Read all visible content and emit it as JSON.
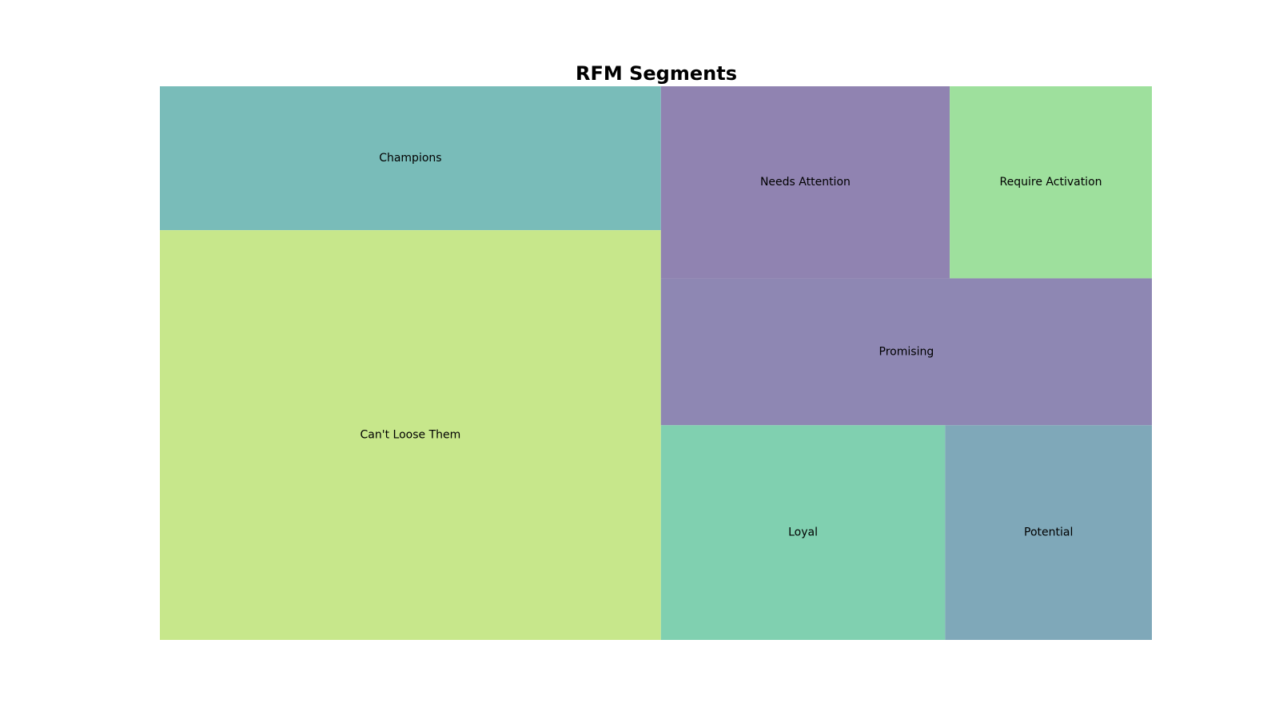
{
  "chart_data": {
    "type": "treemap",
    "title": "RFM Segments",
    "series": [
      {
        "name": "Can't Loose Them",
        "value": 37,
        "color": "#c7e78b"
      },
      {
        "name": "Champions",
        "value": 13,
        "color": "#79bcb9"
      },
      {
        "name": "Promising",
        "value": 13,
        "color": "#8e87b3"
      },
      {
        "name": "Needs Attention",
        "value": 10,
        "color": "#9083b1"
      },
      {
        "name": "Loyal",
        "value": 11,
        "color": "#80d0b0"
      },
      {
        "name": "Require Activation",
        "value": 7,
        "color": "#9ee09d"
      },
      {
        "name": "Potential",
        "value": 8,
        "color": "#7fa8b9"
      }
    ]
  }
}
